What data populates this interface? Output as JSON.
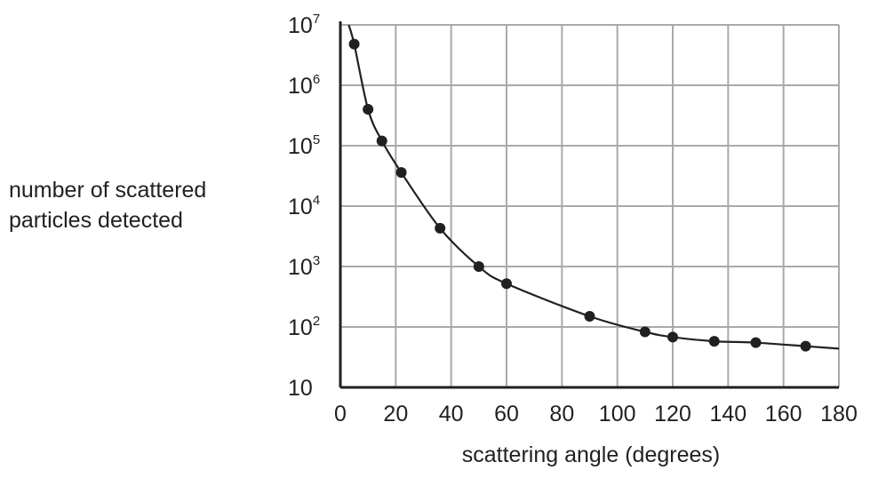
{
  "chart_data": {
    "type": "scatter",
    "title": "",
    "xlabel": "scattering angle (degrees)",
    "ylabel_lines": [
      "number of scattered",
      "particles detected"
    ],
    "xlim": [
      0,
      180
    ],
    "ylim": [
      10,
      10000000
    ],
    "y_scale": "log",
    "grid": true,
    "legend": "none",
    "x_ticks": [
      "0",
      "20",
      "40",
      "60",
      "80",
      "100",
      "120",
      "140",
      "160",
      "180"
    ],
    "y_ticks": [
      {
        "base": "10",
        "exp": ""
      },
      {
        "base": "10",
        "exp": "2"
      },
      {
        "base": "10",
        "exp": "3"
      },
      {
        "base": "10",
        "exp": "4"
      },
      {
        "base": "10",
        "exp": "5"
      },
      {
        "base": "10",
        "exp": "6"
      },
      {
        "base": "10",
        "exp": "7"
      }
    ],
    "points": [
      {
        "x": 5,
        "y": 4800000
      },
      {
        "x": 10,
        "y": 400000
      },
      {
        "x": 15,
        "y": 120000
      },
      {
        "x": 22,
        "y": 36000
      },
      {
        "x": 36,
        "y": 4300
      },
      {
        "x": 50,
        "y": 1000
      },
      {
        "x": 60,
        "y": 520
      },
      {
        "x": 90,
        "y": 150
      },
      {
        "x": 110,
        "y": 83
      },
      {
        "x": 120,
        "y": 68
      },
      {
        "x": 135,
        "y": 58
      },
      {
        "x": 150,
        "y": 55
      },
      {
        "x": 168,
        "y": 48
      }
    ],
    "colors": {
      "ink": "#231f20",
      "grid": "#a7a9ac"
    }
  }
}
